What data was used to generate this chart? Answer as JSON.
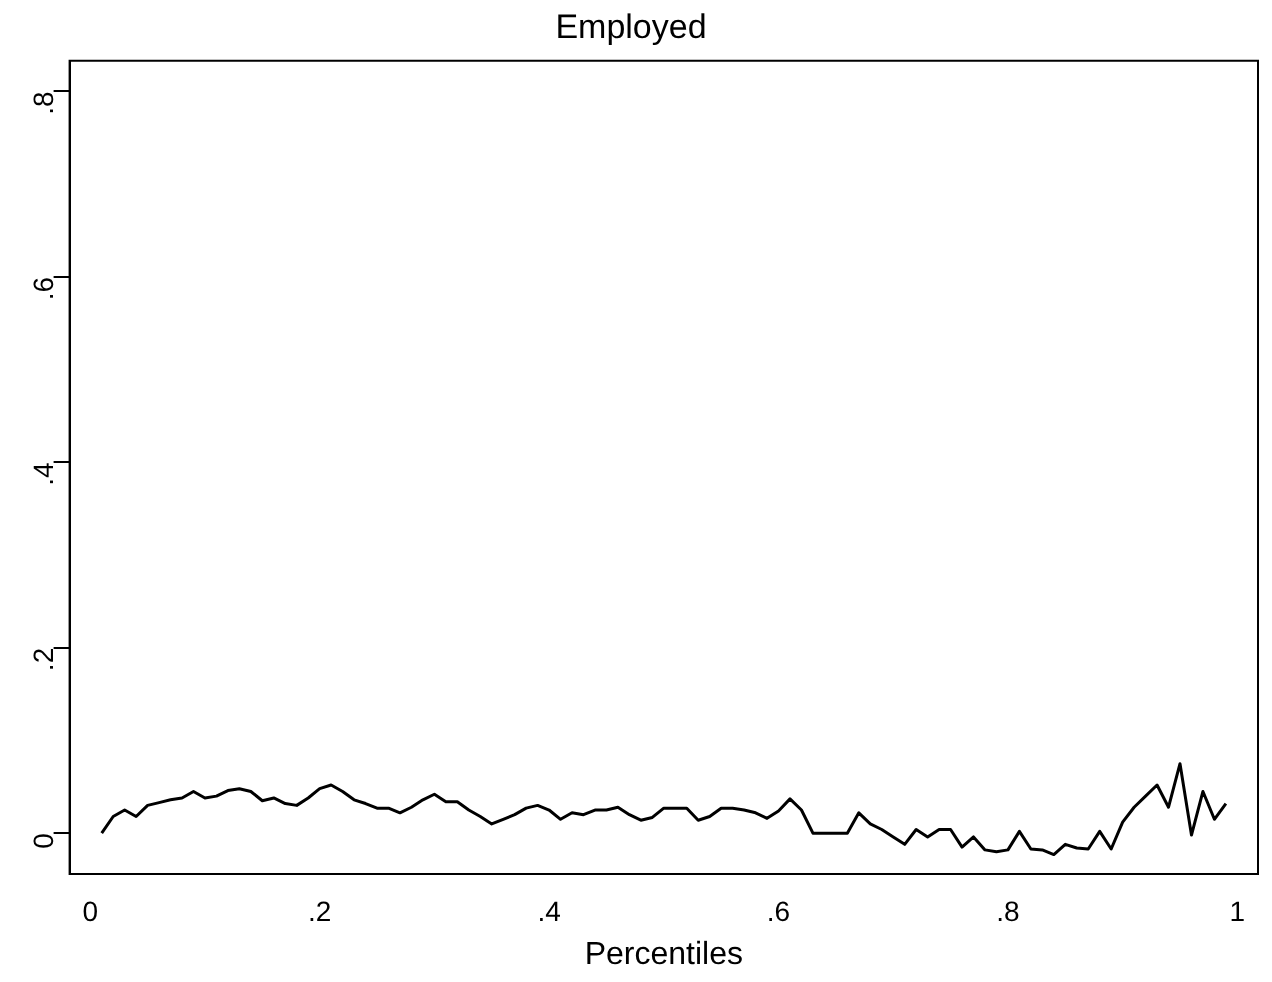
{
  "chart_data": {
    "type": "line",
    "title": "Employed",
    "xlabel": "Percentiles",
    "x": [
      0.01,
      0.02,
      0.03,
      0.04,
      0.05,
      0.06,
      0.07,
      0.08,
      0.09,
      0.1,
      0.11,
      0.12,
      0.13,
      0.14,
      0.15,
      0.16,
      0.17,
      0.18,
      0.19,
      0.2,
      0.21,
      0.22,
      0.23,
      0.24,
      0.25,
      0.26,
      0.27,
      0.28,
      0.29,
      0.3,
      0.31,
      0.32,
      0.33,
      0.34,
      0.35,
      0.36,
      0.37,
      0.38,
      0.39,
      0.4,
      0.41,
      0.42,
      0.43,
      0.44,
      0.45,
      0.46,
      0.47,
      0.48,
      0.49,
      0.5,
      0.51,
      0.52,
      0.53,
      0.54,
      0.55,
      0.56,
      0.57,
      0.58,
      0.59,
      0.6,
      0.61,
      0.62,
      0.63,
      0.64,
      0.65,
      0.66,
      0.67,
      0.68,
      0.69,
      0.7,
      0.71,
      0.72,
      0.73,
      0.74,
      0.75,
      0.76,
      0.77,
      0.78,
      0.79,
      0.8,
      0.81,
      0.82,
      0.83,
      0.84,
      0.85,
      0.86,
      0.87,
      0.88,
      0.89,
      0.9,
      0.91,
      0.92,
      0.93,
      0.94,
      0.95,
      0.96,
      0.97,
      0.98,
      0.99
    ],
    "series": [
      {
        "color": "#000000",
        "values": [
          0,
          0.018,
          0.025,
          0.018,
          0.03,
          0.033,
          0.036,
          0.038,
          0.045,
          0.038,
          0.04,
          0.046,
          0.048,
          0.045,
          0.035,
          0.038,
          0.032,
          0.03,
          0.038,
          0.048,
          0.052,
          0.045,
          0.036,
          0.032,
          0.027,
          0.027,
          0.022,
          0.028,
          0.036,
          0.042,
          0.034,
          0.034,
          0.025,
          0.018,
          0.01,
          0.015,
          0.02,
          0.027,
          0.03,
          0.025,
          0.015,
          0.022,
          0.02,
          0.025,
          0.025,
          0.028,
          0.02,
          0.014,
          0.017,
          0.027,
          0.027,
          0.027,
          0.014,
          0.018,
          0.027,
          0.027,
          0.025,
          0.022,
          0.016,
          0.024,
          0.037,
          0.025,
          0,
          0,
          0,
          0,
          0.022,
          0.01,
          0.004,
          -0.004,
          -0.012,
          0.004,
          -0.004,
          0.004,
          0.004,
          -0.015,
          -0.004,
          -0.018,
          -0.02,
          -0.018,
          0.002,
          -0.017,
          -0.018,
          -0.023,
          -0.012,
          -0.016,
          -0.017,
          0.002,
          -0.017,
          0.012,
          0.028,
          0.04,
          0.052,
          0.028,
          0.075,
          -0.002,
          0.045,
          0.015,
          0.032
        ]
      }
    ],
    "xlim": [
      -0.018,
      1.018
    ],
    "ylim": [
      -0.044,
      0.833
    ],
    "xticks": [
      {
        "value": 0,
        "label": "0"
      },
      {
        "value": 0.2,
        "label": ".2"
      },
      {
        "value": 0.4,
        "label": ".4"
      },
      {
        "value": 0.6,
        "label": ".6"
      },
      {
        "value": 0.8,
        "label": ".8"
      },
      {
        "value": 1,
        "label": "1"
      }
    ],
    "yticks": [
      {
        "value": 0,
        "label": "0"
      },
      {
        "value": 0.2,
        "label": ".2"
      },
      {
        "value": 0.4,
        "label": ".4"
      },
      {
        "value": 0.6,
        "label": ".6"
      },
      {
        "value": 0.8,
        "label": ".8"
      }
    ],
    "grid": false,
    "legend": false,
    "marker": "none",
    "line_style": "solid"
  }
}
